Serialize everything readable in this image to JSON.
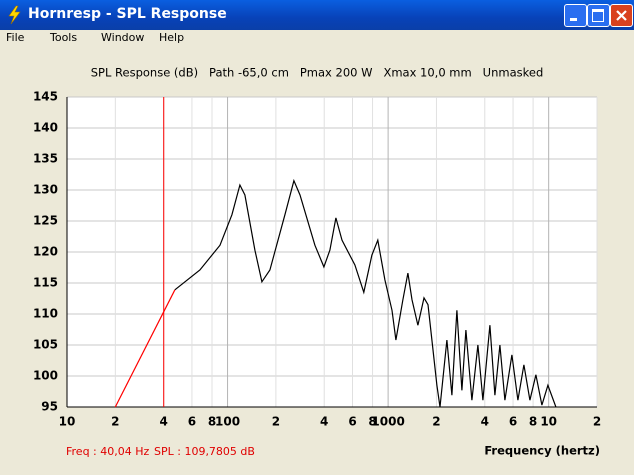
{
  "window": {
    "title": "Hornresp - SPL Response",
    "menu": [
      "File",
      "Tools",
      "Window",
      "Help"
    ]
  },
  "chart_data": {
    "type": "line",
    "title": "SPL Response (dB)   Path -65,0 cm   Pmax 200 W   Xmax 10,0 mm   Unmasked",
    "x_label": "Frequency (hertz)",
    "x_scale": "log",
    "grid": true,
    "xlim": [
      10,
      20000
    ],
    "ylim": [
      95,
      145
    ],
    "xticks": [
      10,
      {
        "value": 20,
        "label": "2"
      },
      {
        "value": 40,
        "label": "4"
      },
      {
        "value": 60,
        "label": "6"
      },
      {
        "value": 80,
        "label": "8"
      },
      100,
      {
        "value": 200,
        "label": "2"
      },
      {
        "value": 400,
        "label": "4"
      },
      {
        "value": 600,
        "label": "6"
      },
      {
        "value": 800,
        "label": "8"
      },
      1000,
      {
        "value": 2000,
        "label": "2"
      },
      {
        "value": 4000,
        "label": "4"
      },
      {
        "value": 6000,
        "label": "6"
      },
      {
        "value": 8000,
        "label": "8"
      },
      {
        "value": 10000,
        "label": "10"
      },
      {
        "value": 20000,
        "label": "2"
      }
    ],
    "yticks": [
      95,
      100,
      105,
      110,
      115,
      120,
      125,
      130,
      135,
      140,
      145
    ],
    "cursor": {
      "x": 40.04,
      "color": "#ff0000"
    },
    "series": [
      {
        "color": "#ff0000",
        "x": [
          20,
          47
        ],
        "values": [
          95,
          113.9
        ]
      },
      {
        "color": "#000000",
        "x": [
          47,
          67.3,
          89.7,
          106.5,
          119.4,
          128.3,
          148.1,
          163.7,
          183.6,
          227.6,
          258.9,
          282.5,
          350,
          398,
          434,
          473,
          516,
          621,
          706,
          792,
          863,
          955,
          1057,
          1118,
          1237,
          1329,
          1408,
          1534,
          1672,
          1771,
          1875,
          2014,
          2104,
          2323,
          2496,
          2680,
          2882,
          3050,
          3324,
          3625,
          3893,
          4305,
          4625,
          4970,
          5337,
          5902,
          6432,
          7014,
          7643,
          8328,
          9074,
          9886,
          11090
        ],
        "values": [
          113.9,
          117.1,
          121.1,
          126.0,
          130.8,
          129.2,
          120.3,
          115.2,
          117.1,
          126.0,
          131.5,
          129.2,
          121.1,
          117.6,
          120.3,
          125.5,
          121.9,
          117.9,
          113.5,
          119.5,
          121.9,
          115.5,
          110.6,
          105.8,
          112.3,
          116.6,
          112.3,
          108.2,
          112.6,
          111.5,
          105.8,
          98.5,
          95,
          105.8,
          96.9,
          110.6,
          97.7,
          107.4,
          96.1,
          105.0,
          96.1,
          108.2,
          96.9,
          105.0,
          96.1,
          103.4,
          96.1,
          101.8,
          96.1,
          100.2,
          95.3,
          98.5,
          95
        ]
      }
    ]
  },
  "status": {
    "freq": "Freq : 40,04 Hz",
    "spl": "SPL : 109,7805 dB"
  }
}
